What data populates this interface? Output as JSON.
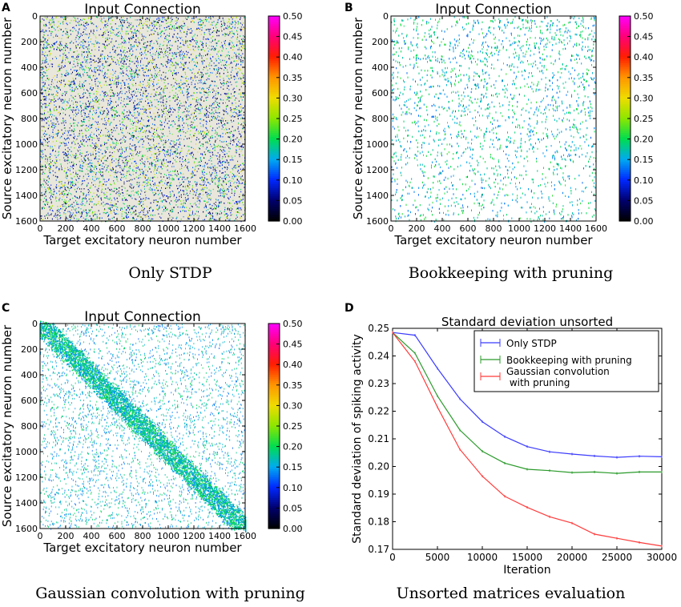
{
  "panels": {
    "A": {
      "letter": "A",
      "caption": "Only STDP"
    },
    "B": {
      "letter": "B",
      "caption": "Bookkeeping with pruning"
    },
    "C": {
      "letter": "C",
      "caption": "Gaussian convolution with pruning"
    },
    "D": {
      "letter": "D",
      "caption": "Unsorted matrices evaluation"
    }
  },
  "colors": {
    "only_stdp": "#3b3bff",
    "bookkeeping": "#2a9a2a",
    "gaussian": "#ff3b3b"
  },
  "chart_data": [
    {
      "panel": "A",
      "type": "heatmap",
      "title": "Input Connection",
      "xlabel": "Target excitatory neuron number",
      "ylabel": "Source excitatory neuron number",
      "xlim": [
        0,
        1600
      ],
      "ylim": [
        1600,
        0
      ],
      "xticks": [
        0,
        200,
        400,
        600,
        800,
        1000,
        1200,
        1400,
        1600
      ],
      "yticks": [
        0,
        200,
        400,
        600,
        800,
        1000,
        1200,
        1400,
        1600
      ],
      "colorbar": {
        "min": 0.0,
        "max": 0.5,
        "ticks": [
          "0.00",
          "0.05",
          "0.10",
          "0.15",
          "0.20",
          "0.25",
          "0.30",
          "0.35",
          "0.40",
          "0.45",
          "0.50"
        ]
      },
      "pattern": "dense_uniform"
    },
    {
      "panel": "B",
      "type": "heatmap",
      "title": "Input Connection",
      "xlabel": "Target excitatory neuron number",
      "ylabel": "Source excitatory neuron number",
      "xlim": [
        0,
        1600
      ],
      "ylim": [
        1600,
        0
      ],
      "xticks": [
        0,
        200,
        400,
        600,
        800,
        1000,
        1200,
        1400,
        1600
      ],
      "yticks": [
        0,
        200,
        400,
        600,
        800,
        1000,
        1200,
        1400,
        1600
      ],
      "colorbar": {
        "min": 0.0,
        "max": 0.5,
        "ticks": [
          "0.00",
          "0.05",
          "0.10",
          "0.15",
          "0.20",
          "0.25",
          "0.30",
          "0.35",
          "0.40",
          "0.45",
          "0.50"
        ]
      },
      "pattern": "sparse_vertical"
    },
    {
      "panel": "C",
      "type": "heatmap",
      "title": "Input Connection",
      "xlabel": "Target excitatory neuron number",
      "ylabel": "Source excitatory neuron number",
      "xlim": [
        0,
        1600
      ],
      "ylim": [
        1600,
        0
      ],
      "xticks": [
        0,
        200,
        400,
        600,
        800,
        1000,
        1200,
        1400,
        1600
      ],
      "yticks": [
        0,
        200,
        400,
        600,
        800,
        1000,
        1200,
        1400,
        1600
      ],
      "colorbar": {
        "min": 0.0,
        "max": 0.5,
        "ticks": [
          "0.00",
          "0.05",
          "0.10",
          "0.15",
          "0.20",
          "0.25",
          "0.30",
          "0.35",
          "0.40",
          "0.45",
          "0.50"
        ]
      },
      "pattern": "diagonal"
    },
    {
      "panel": "D",
      "type": "line",
      "title": "Standard deviation unsorted",
      "xlabel": "Iteration",
      "ylabel": "Standard deviation of spiking activity",
      "xlim": [
        0,
        30000
      ],
      "ylim": [
        0.17,
        0.25
      ],
      "xticks": [
        0,
        5000,
        10000,
        15000,
        20000,
        25000,
        30000
      ],
      "yticks": [
        0.17,
        0.18,
        0.19,
        0.2,
        0.21,
        0.22,
        0.23,
        0.24,
        0.25
      ],
      "ytick_labels": [
        "0.17",
        "0.18",
        "0.19",
        "0.20",
        "0.21",
        "0.22",
        "0.23",
        "0.24",
        "0.25"
      ],
      "legend_position": "top-right",
      "x": [
        0,
        2500,
        5000,
        7500,
        10000,
        12500,
        15000,
        17500,
        20000,
        22500,
        25000,
        27500,
        30000
      ],
      "series": [
        {
          "name": "Only STDP",
          "color_key": "only_stdp",
          "values": [
            0.2485,
            0.2475,
            0.2355,
            0.2245,
            0.2162,
            0.2108,
            0.2072,
            0.2053,
            0.2045,
            0.2038,
            0.2033,
            0.2037,
            0.2035
          ]
        },
        {
          "name": "Bookkeeping with pruning",
          "color_key": "bookkeeping",
          "values": [
            0.2485,
            0.241,
            0.2255,
            0.2132,
            0.2055,
            0.2012,
            0.199,
            0.1985,
            0.1978,
            0.198,
            0.1975,
            0.198,
            0.198
          ]
        },
        {
          "name": "Gaussian convolution\n with pruning",
          "color_key": "gaussian",
          "values": [
            0.2485,
            0.238,
            0.2215,
            0.2062,
            0.1965,
            0.1892,
            0.1852,
            0.1818,
            0.1795,
            0.1755,
            0.174,
            0.1725,
            0.1712
          ]
        }
      ]
    }
  ]
}
